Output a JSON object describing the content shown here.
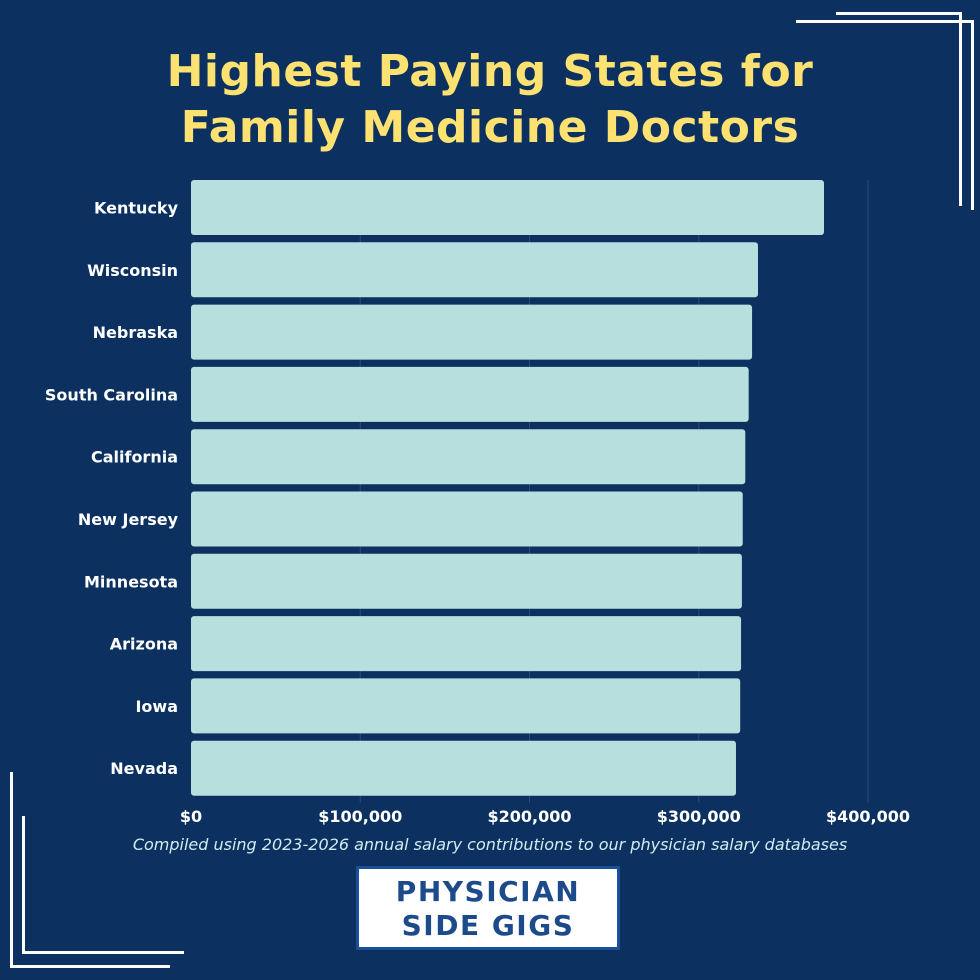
{
  "title": {
    "line1": "Highest Paying States for",
    "line2": "Family Medicine Doctors"
  },
  "chart_data": {
    "type": "bar",
    "orientation": "horizontal",
    "categories": [
      "Kentucky",
      "Wisconsin",
      "Nebraska",
      "South Carolina",
      "California",
      "New Jersey",
      "Minnesota",
      "Arizona",
      "Iowa",
      "Nevada"
    ],
    "values": [
      374000,
      335000,
      331500,
      329500,
      327500,
      326000,
      325500,
      325000,
      324500,
      322000
    ],
    "title": "Highest Paying States for Family Medicine Doctors",
    "xlabel": "",
    "ylabel": "",
    "xlim": [
      0,
      400000
    ],
    "x_ticks": [
      "$0",
      "$100,000",
      "$200,000",
      "$300,000",
      "$400,000"
    ],
    "grid": "vertical lines",
    "legend": "none",
    "colors": {
      "bar": "#b7dfdd",
      "background": "#0c3160",
      "title": "#fde272",
      "grid": "#2a4c7a"
    }
  },
  "footnote": "Compiled using 2023-2026 annual salary contributions to our physician salary databases",
  "logo": {
    "line1": "PHYSICIAN",
    "line2": "SIDE GIGS"
  }
}
